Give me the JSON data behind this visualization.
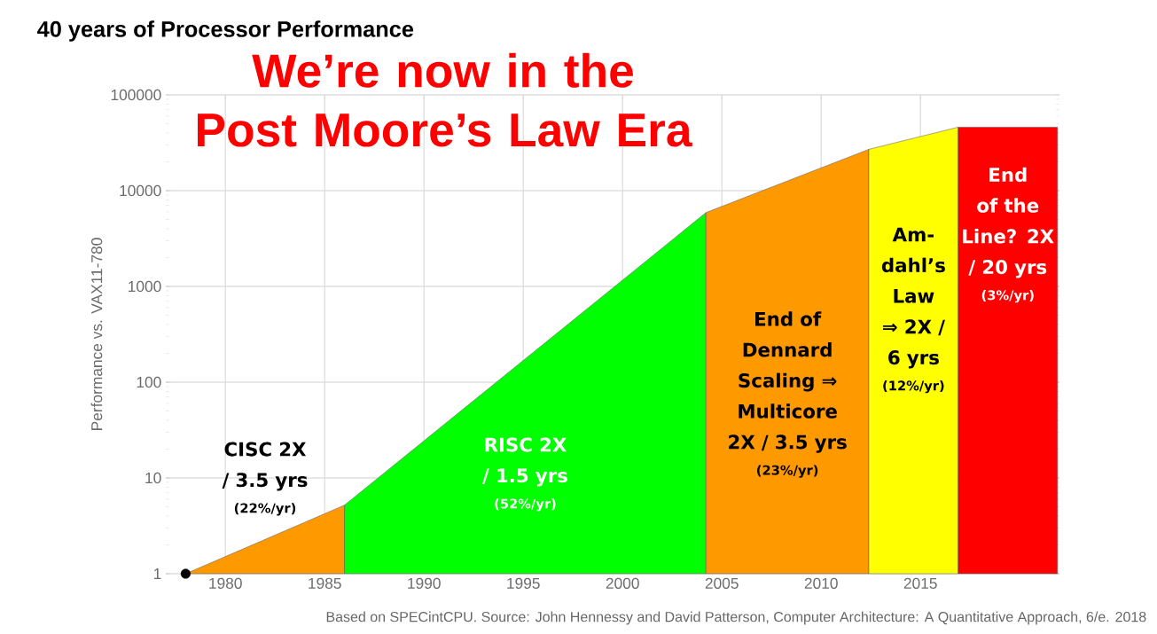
{
  "chart_data": {
    "type": "area",
    "title": "40 years of Processor Performance",
    "subtitle": "We’re now in the Post Moore’s Law Era",
    "ylabel": "Performance vs. VAX11-780",
    "log": "y",
    "grid": true,
    "xlim": [
      1977,
      2022
    ],
    "xticks": [
      1980,
      1985,
      1990,
      1995,
      2000,
      2005,
      2010,
      2015
    ],
    "ylim": [
      1,
      100000
    ],
    "yticks": [
      1,
      10,
      100,
      1000,
      10000,
      100000
    ],
    "series": [
      {
        "color": "#ff9900",
        "x": [
          1978,
          1986
        ],
        "values": [
          1,
          5.2
        ]
      },
      {
        "color": "#00ff00",
        "x": [
          1986,
          2004.2
        ],
        "values": [
          5.2,
          5900
        ]
      },
      {
        "color": "#ff9900",
        "x": [
          2004.2,
          2012.4
        ],
        "values": [
          5900,
          27000
        ]
      },
      {
        "color": "#ffff00",
        "x": [
          2012.4,
          2016.9
        ],
        "values": [
          27000,
          46000
        ]
      },
      {
        "color": "#ff0000",
        "x": [
          2016.9,
          2021.9
        ],
        "values": [
          46000,
          46000
        ]
      },
      {
        "type": "scatter",
        "marker": "circle",
        "color": "#000000",
        "x": [
          1978
        ],
        "values": [
          1
        ]
      }
    ],
    "annotations": [
      "CISC 2X / 3.5 yrs",
      "(22%/yr)",
      "RISC 2X / 1.5 yrs",
      "(52%/yr)",
      "End of Dennard Scaling ⇒ Multicore 2X / 3.5 yrs",
      "(23%/yr)",
      "Am-dahl’s Law ⇒ 2X / 6 yrs",
      "(12%/yr)",
      "End of the Line? 2X / 20 yrs",
      "(3%/yr)",
      "Based on SPECintCPU. Source: John Hennessy and David Patterson, Computer Architecture: A Quantitative Approach, 6/e. 2018"
    ]
  }
}
